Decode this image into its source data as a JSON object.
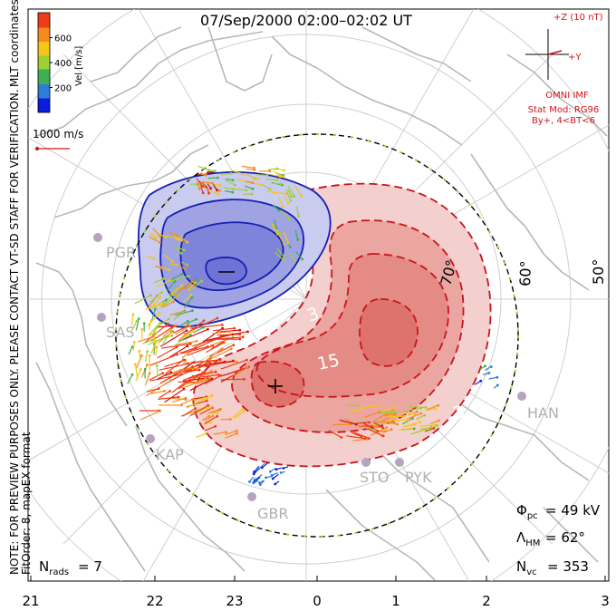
{
  "title": "07/Sep/2000 02:00–02:02 UT",
  "side_note": "NOTE: FOR PREVIEW PURPOSES ONLY. PLEASE CONTACT VT-SD STAFF FOR VERIFICATION.",
  "fit_note": "FitOrder: 8, mapEX format",
  "mlt_label": "MLT coordinates",
  "colorbar": {
    "label": "Vel [m/s]",
    "ticks": [
      {
        "value": 200,
        "text": "200"
      },
      {
        "value": 400,
        "text": "400"
      },
      {
        "value": 600,
        "text": "600"
      }
    ],
    "min": 0,
    "max": 800,
    "colors": [
      "#0b1be0",
      "#2e7bd8",
      "#3cb053",
      "#9fd033",
      "#f5c518",
      "#f58a1f",
      "#ee3b18",
      "#d40f0f"
    ]
  },
  "scale_vector": {
    "label": "1000 m/s",
    "color": "#d0141b"
  },
  "imf": {
    "axis_z": "+Z (10 nT)",
    "axis_y": "+Y",
    "source": "OMNI IMF",
    "model": "Stat Mod: RG96",
    "condition": "By+, 4<BT<6",
    "color": "#d0141b"
  },
  "lat_labels": [
    "70°",
    "60°",
    "50°"
  ],
  "mlt_ticks": [
    "21",
    "22",
    "23",
    "0",
    "1",
    "2",
    "3"
  ],
  "stations": [
    {
      "code": "PGR"
    },
    {
      "code": "SAS"
    },
    {
      "code": "KAP"
    },
    {
      "code": "GBR"
    },
    {
      "code": "STO"
    },
    {
      "code": "PYK"
    },
    {
      "code": "HAN"
    }
  ],
  "contour_labels": [
    "3",
    "15",
    "3"
  ],
  "stats": {
    "phi_sym": "Φ",
    "phi_sub": "pc",
    "phi_value": "= 49 kV",
    "lambda_sym": "Λ",
    "lambda_sub": "HM",
    "lambda_value": "= 62°",
    "nvc_sym": "N",
    "nvc_sub": "vc",
    "nvc_value": "= 353",
    "nrads_sym": "N",
    "nrads_sub": "rads",
    "nrads_value": "= 7"
  },
  "colors": {
    "positive_fill": "#e58b86",
    "negative_fill": "#6f73d6",
    "positive_line": "#c8141a",
    "negative_line": "#1520b0",
    "coast": "#b8b8b8",
    "grid": "#c8c8c8",
    "station": "#b7a2c0",
    "hmb": "#9fd033"
  }
}
